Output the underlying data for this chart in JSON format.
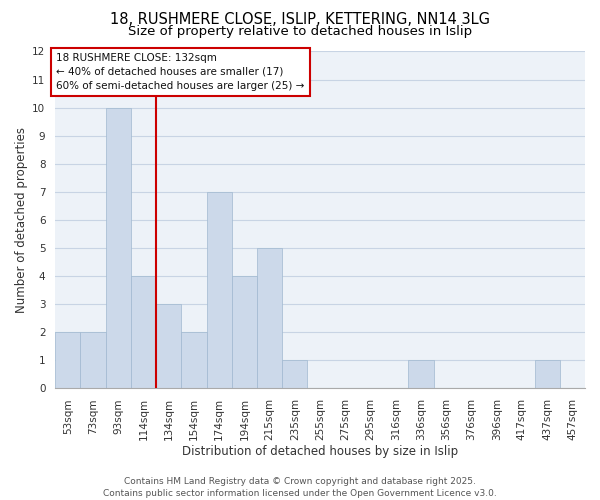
{
  "title_line1": "18, RUSHMERE CLOSE, ISLIP, KETTERING, NN14 3LG",
  "title_line2": "Size of property relative to detached houses in Islip",
  "xlabel": "Distribution of detached houses by size in Islip",
  "ylabel": "Number of detached properties",
  "categories": [
    "53sqm",
    "73sqm",
    "93sqm",
    "114sqm",
    "134sqm",
    "154sqm",
    "174sqm",
    "194sqm",
    "215sqm",
    "235sqm",
    "255sqm",
    "275sqm",
    "295sqm",
    "316sqm",
    "336sqm",
    "356sqm",
    "376sqm",
    "396sqm",
    "417sqm",
    "437sqm",
    "457sqm"
  ],
  "values": [
    2,
    2,
    10,
    4,
    3,
    2,
    7,
    4,
    5,
    1,
    0,
    0,
    0,
    0,
    1,
    0,
    0,
    0,
    0,
    1,
    0
  ],
  "bar_color": "#ccd9ea",
  "bar_edge_color": "#a0b8d0",
  "redline_index": 3.5,
  "annotation_title": "18 RUSHMERE CLOSE: 132sqm",
  "annotation_line2": "← 40% of detached houses are smaller (17)",
  "annotation_line3": "60% of semi-detached houses are larger (25) →",
  "ylim": [
    0,
    12
  ],
  "yticks": [
    0,
    1,
    2,
    3,
    4,
    5,
    6,
    7,
    8,
    9,
    10,
    11,
    12
  ],
  "grid_color": "#c8d4e4",
  "bg_color": "#edf2f8",
  "footer_line1": "Contains HM Land Registry data © Crown copyright and database right 2025.",
  "footer_line2": "Contains public sector information licensed under the Open Government Licence v3.0.",
  "title_fontsize": 10.5,
  "subtitle_fontsize": 9.5,
  "axis_label_fontsize": 8.5,
  "tick_fontsize": 7.5,
  "annotation_fontsize": 7.5,
  "footer_fontsize": 6.5
}
